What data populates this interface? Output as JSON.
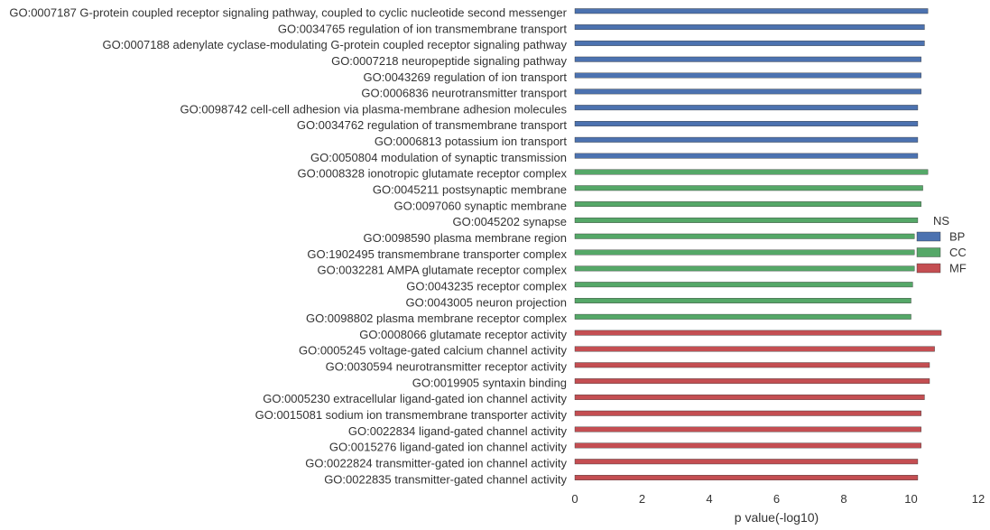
{
  "chart_data": {
    "type": "bar",
    "orientation": "horizontal",
    "xlabel": "p value(-log10)",
    "xlim": [
      0,
      12
    ],
    "xticks": [
      0,
      2,
      4,
      6,
      8,
      10,
      12
    ],
    "grid": false,
    "legend": {
      "title": "NS",
      "placement": "right",
      "entries": [
        {
          "name": "BP",
          "color": "#4c72b0"
        },
        {
          "name": "CC",
          "color": "#55a868"
        },
        {
          "name": "MF",
          "color": "#c44e52"
        }
      ]
    },
    "bars": [
      {
        "label": "GO:0007187 G-protein coupled receptor signaling pathway, coupled to cyclic nucleotide second messenger",
        "group": "BP",
        "value": 10.5
      },
      {
        "label": "GO:0034765 regulation of ion transmembrane transport",
        "group": "BP",
        "value": 10.4
      },
      {
        "label": "GO:0007188 adenylate cyclase-modulating G-protein coupled receptor signaling pathway",
        "group": "BP",
        "value": 10.4
      },
      {
        "label": "GO:0007218 neuropeptide signaling pathway",
        "group": "BP",
        "value": 10.3
      },
      {
        "label": "GO:0043269 regulation of ion transport",
        "group": "BP",
        "value": 10.3
      },
      {
        "label": "GO:0006836 neurotransmitter transport",
        "group": "BP",
        "value": 10.3
      },
      {
        "label": "GO:0098742 cell-cell adhesion via plasma-membrane adhesion molecules",
        "group": "BP",
        "value": 10.2
      },
      {
        "label": "GO:0034762 regulation of transmembrane transport",
        "group": "BP",
        "value": 10.2
      },
      {
        "label": "GO:0006813 potassium ion transport",
        "group": "BP",
        "value": 10.2
      },
      {
        "label": "GO:0050804 modulation of synaptic transmission",
        "group": "BP",
        "value": 10.2
      },
      {
        "label": "GO:0008328 ionotropic glutamate receptor complex",
        "group": "CC",
        "value": 10.5
      },
      {
        "label": "GO:0045211 postsynaptic membrane",
        "group": "CC",
        "value": 10.35
      },
      {
        "label": "GO:0097060 synaptic membrane",
        "group": "CC",
        "value": 10.3
      },
      {
        "label": "GO:0045202 synapse",
        "group": "CC",
        "value": 10.2
      },
      {
        "label": "GO:0098590 plasma membrane region",
        "group": "CC",
        "value": 10.1
      },
      {
        "label": "GO:1902495 transmembrane transporter complex",
        "group": "CC",
        "value": 10.1
      },
      {
        "label": "GO:0032281 AMPA glutamate receptor complex",
        "group": "CC",
        "value": 10.1
      },
      {
        "label": "GO:0043235 receptor complex",
        "group": "CC",
        "value": 10.05
      },
      {
        "label": "GO:0043005 neuron projection",
        "group": "CC",
        "value": 10.0
      },
      {
        "label": "GO:0098802 plasma membrane receptor complex",
        "group": "CC",
        "value": 10.0
      },
      {
        "label": "GO:0008066 glutamate receptor activity",
        "group": "MF",
        "value": 10.9
      },
      {
        "label": "GO:0005245 voltage-gated calcium channel activity",
        "group": "MF",
        "value": 10.7
      },
      {
        "label": "GO:0030594 neurotransmitter receptor activity",
        "group": "MF",
        "value": 10.55
      },
      {
        "label": "GO:0019905 syntaxin binding",
        "group": "MF",
        "value": 10.55
      },
      {
        "label": "GO:0005230 extracellular ligand-gated ion channel activity",
        "group": "MF",
        "value": 10.4
      },
      {
        "label": "GO:0015081 sodium ion transmembrane transporter activity",
        "group": "MF",
        "value": 10.3
      },
      {
        "label": "GO:0022834 ligand-gated channel activity",
        "group": "MF",
        "value": 10.3
      },
      {
        "label": "GO:0015276 ligand-gated ion channel activity",
        "group": "MF",
        "value": 10.3
      },
      {
        "label": "GO:0022824 transmitter-gated ion channel activity",
        "group": "MF",
        "value": 10.2
      },
      {
        "label": "GO:0022835 transmitter-gated channel activity",
        "group": "MF",
        "value": 10.2
      }
    ]
  }
}
